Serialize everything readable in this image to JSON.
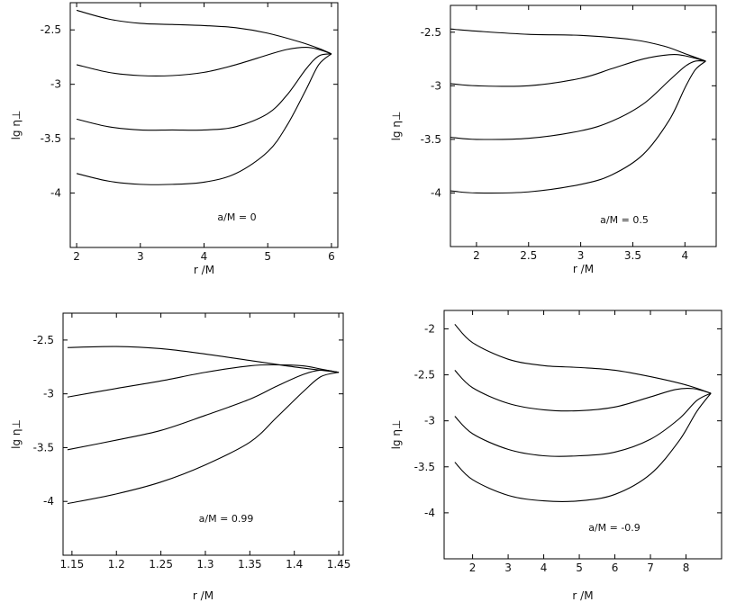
{
  "chart_data": [
    {
      "type": "line",
      "xlabel": "r /M",
      "ylabel": "lg η⊥",
      "annotation": "a/M = 0",
      "xlim": [
        1.9,
        6.1
      ],
      "ylim": [
        -4.5,
        -2.25
      ],
      "xticks": [
        2,
        3,
        4,
        5,
        6
      ],
      "xtick_labels": [
        "2",
        "3",
        "4",
        "5",
        "6"
      ],
      "yticks": [
        -2.5,
        -3,
        -3.5,
        -4
      ],
      "ytick_labels": [
        "-2.5",
        "-3",
        "-3.5",
        "-4"
      ],
      "grid": false,
      "series": [
        {
          "x": [
            2.0,
            2.5,
            3.0,
            3.5,
            4.0,
            4.5,
            5.0,
            5.5,
            5.8,
            6.0
          ],
          "y": [
            -2.32,
            -2.4,
            -2.44,
            -2.45,
            -2.46,
            -2.48,
            -2.53,
            -2.61,
            -2.67,
            -2.72
          ]
        },
        {
          "x": [
            2.0,
            2.5,
            3.0,
            3.5,
            4.0,
            4.5,
            5.0,
            5.3,
            5.6,
            5.8,
            6.0
          ],
          "y": [
            -2.82,
            -2.89,
            -2.92,
            -2.92,
            -2.89,
            -2.82,
            -2.73,
            -2.68,
            -2.66,
            -2.68,
            -2.72
          ]
        },
        {
          "x": [
            2.0,
            2.5,
            3.0,
            3.5,
            4.0,
            4.5,
            5.0,
            5.3,
            5.6,
            5.8,
            6.0
          ],
          "y": [
            -3.32,
            -3.39,
            -3.42,
            -3.42,
            -3.42,
            -3.39,
            -3.27,
            -3.1,
            -2.86,
            -2.74,
            -2.72
          ]
        },
        {
          "x": [
            2.0,
            2.5,
            3.0,
            3.5,
            4.0,
            4.5,
            5.0,
            5.3,
            5.6,
            5.8,
            6.0
          ],
          "y": [
            -3.82,
            -3.89,
            -3.92,
            -3.92,
            -3.9,
            -3.82,
            -3.62,
            -3.38,
            -3.05,
            -2.82,
            -2.72
          ]
        }
      ]
    },
    {
      "type": "line",
      "xlabel": "r /M",
      "ylabel": "lg η⊥",
      "annotation": "a/M = 0.5",
      "xlim": [
        1.75,
        4.3
      ],
      "ylim": [
        -4.5,
        -2.25
      ],
      "xticks": [
        2,
        2.5,
        3,
        3.5,
        4
      ],
      "xtick_labels": [
        "2",
        "2.5",
        "3",
        "3.5",
        "4"
      ],
      "yticks": [
        -2.5,
        -3,
        -3.5,
        -4
      ],
      "ytick_labels": [
        "-2.5",
        "-3",
        "-3.5",
        "-4"
      ],
      "grid": false,
      "series": [
        {
          "x": [
            1.75,
            2.0,
            2.5,
            3.0,
            3.5,
            3.8,
            4.0,
            4.2
          ],
          "y": [
            -2.47,
            -2.49,
            -2.52,
            -2.53,
            -2.57,
            -2.63,
            -2.7,
            -2.77
          ]
        },
        {
          "x": [
            1.75,
            2.0,
            2.5,
            3.0,
            3.3,
            3.6,
            3.85,
            4.0,
            4.2
          ],
          "y": [
            -2.98,
            -3.0,
            -3.0,
            -2.93,
            -2.84,
            -2.75,
            -2.71,
            -2.72,
            -2.77
          ]
        },
        {
          "x": [
            1.75,
            2.0,
            2.5,
            3.0,
            3.3,
            3.6,
            3.85,
            4.0,
            4.1,
            4.2
          ],
          "y": [
            -3.48,
            -3.5,
            -3.49,
            -3.42,
            -3.33,
            -3.17,
            -2.95,
            -2.82,
            -2.77,
            -2.77
          ]
        },
        {
          "x": [
            1.75,
            2.0,
            2.5,
            3.0,
            3.3,
            3.6,
            3.85,
            4.0,
            4.1,
            4.2
          ],
          "y": [
            -3.98,
            -4.0,
            -3.99,
            -3.92,
            -3.83,
            -3.64,
            -3.32,
            -3.02,
            -2.85,
            -2.77
          ]
        }
      ]
    },
    {
      "type": "line",
      "xlabel": "r /M",
      "ylabel": "lg η⊥",
      "annotation": "a/M = 0.99",
      "xlim": [
        1.14,
        1.455
      ],
      "ylim": [
        -4.5,
        -2.25
      ],
      "xticks": [
        1.15,
        1.2,
        1.25,
        1.3,
        1.35,
        1.4,
        1.45
      ],
      "xtick_labels": [
        "1.15",
        "1.2",
        "1.25",
        "1.3",
        "1.35",
        "1.4",
        "1.45"
      ],
      "yticks": [
        -2.5,
        -3,
        -3.5,
        -4
      ],
      "ytick_labels": [
        "-2.5",
        "-3",
        "-3.5",
        "-4"
      ],
      "grid": false,
      "series": [
        {
          "x": [
            1.145,
            1.2,
            1.25,
            1.3,
            1.35,
            1.4,
            1.45
          ],
          "y": [
            -2.57,
            -2.56,
            -2.58,
            -2.63,
            -2.69,
            -2.75,
            -2.8
          ]
        },
        {
          "x": [
            1.145,
            1.2,
            1.25,
            1.3,
            1.35,
            1.38,
            1.41,
            1.43,
            1.45
          ],
          "y": [
            -3.03,
            -2.95,
            -2.88,
            -2.8,
            -2.74,
            -2.73,
            -2.74,
            -2.77,
            -2.8
          ]
        },
        {
          "x": [
            1.145,
            1.2,
            1.25,
            1.3,
            1.35,
            1.38,
            1.41,
            1.43,
            1.45
          ],
          "y": [
            -3.52,
            -3.43,
            -3.34,
            -3.2,
            -3.05,
            -2.93,
            -2.82,
            -2.78,
            -2.8
          ]
        },
        {
          "x": [
            1.145,
            1.2,
            1.25,
            1.3,
            1.35,
            1.38,
            1.41,
            1.43,
            1.45
          ],
          "y": [
            -4.02,
            -3.93,
            -3.82,
            -3.66,
            -3.45,
            -3.22,
            -2.98,
            -2.84,
            -2.8
          ]
        }
      ]
    },
    {
      "type": "line",
      "xlabel": "r /M",
      "ylabel": "lg η⊥",
      "annotation": "a/M = -0.9",
      "xlim": [
        1.2,
        9.0
      ],
      "ylim": [
        -4.5,
        -1.8
      ],
      "xticks": [
        2,
        3,
        4,
        5,
        6,
        7,
        8
      ],
      "xtick_labels": [
        "2",
        "3",
        "4",
        "5",
        "6",
        "7",
        "8"
      ],
      "yticks": [
        -2,
        -2.5,
        -3,
        -3.5,
        -4
      ],
      "ytick_labels": [
        "-2",
        "-2.5",
        "-3",
        "-3.5",
        "-4"
      ],
      "grid": false,
      "series": [
        {
          "x": [
            1.5,
            2.0,
            3.0,
            4.0,
            5.0,
            6.0,
            7.0,
            8.0,
            8.7
          ],
          "y": [
            -1.95,
            -2.15,
            -2.33,
            -2.4,
            -2.42,
            -2.45,
            -2.52,
            -2.61,
            -2.7
          ]
        },
        {
          "x": [
            1.5,
            2.0,
            3.0,
            4.0,
            5.0,
            6.0,
            7.0,
            7.7,
            8.2,
            8.7
          ],
          "y": [
            -2.45,
            -2.64,
            -2.81,
            -2.88,
            -2.89,
            -2.85,
            -2.74,
            -2.66,
            -2.65,
            -2.7
          ]
        },
        {
          "x": [
            1.5,
            2.0,
            3.0,
            4.0,
            5.0,
            6.0,
            7.0,
            7.8,
            8.3,
            8.7
          ],
          "y": [
            -2.95,
            -3.14,
            -3.31,
            -3.38,
            -3.38,
            -3.34,
            -3.2,
            -2.98,
            -2.78,
            -2.7
          ]
        },
        {
          "x": [
            1.5,
            2.0,
            3.0,
            4.0,
            5.0,
            6.0,
            7.0,
            7.8,
            8.3,
            8.7
          ],
          "y": [
            -3.45,
            -3.64,
            -3.81,
            -3.87,
            -3.87,
            -3.8,
            -3.58,
            -3.22,
            -2.9,
            -2.7
          ]
        }
      ]
    }
  ]
}
